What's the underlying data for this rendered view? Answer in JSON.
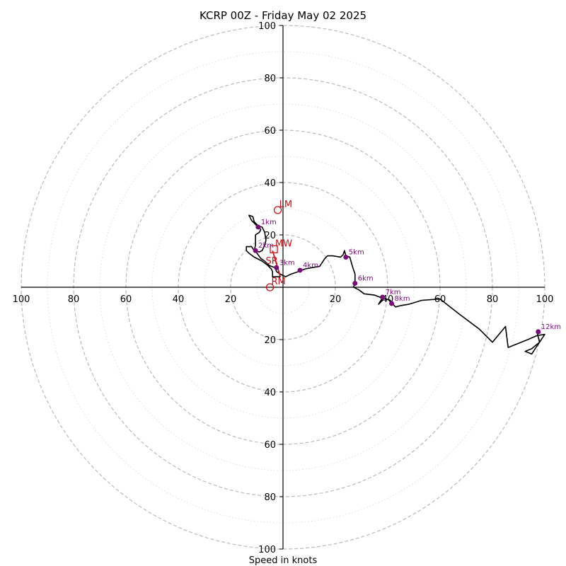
{
  "chart_data": {
    "type": "hodograph",
    "title": "KCRP 00Z - Friday May 02 2025",
    "xlabel": "Speed in knots",
    "units": "knots",
    "range": [
      -100,
      100
    ],
    "ring_major": [
      20,
      40,
      60,
      80,
      100
    ],
    "ring_minor": [
      10,
      30,
      50,
      70,
      90
    ],
    "tick_labels_x": [
      "100",
      "80",
      "60",
      "40",
      "20",
      "20",
      "40",
      "60",
      "80",
      "100"
    ],
    "tick_values_x": [
      -100,
      -80,
      -60,
      -40,
      -20,
      20,
      40,
      60,
      80,
      100
    ],
    "tick_labels_y": [
      "100",
      "80",
      "60",
      "40",
      "20",
      "20",
      "40",
      "60",
      "80",
      "100"
    ],
    "tick_values_y": [
      100,
      80,
      60,
      40,
      20,
      -20,
      -40,
      -60,
      -80,
      -100
    ],
    "grid": true,
    "colors": {
      "trace": "#000000",
      "height_marker": "#7a0a7a",
      "storm_motion": "#c81414",
      "ring_major": "#bbbbbb",
      "ring_minor": "#dddddd"
    },
    "wind_trace": [
      [
        -1,
        4
      ],
      [
        -3,
        4
      ],
      [
        -4,
        4
      ],
      [
        -4,
        6
      ],
      [
        -4.5,
        7
      ],
      [
        -6,
        8.5
      ],
      [
        -8,
        10
      ],
      [
        -11,
        11.5
      ],
      [
        -13,
        13
      ],
      [
        -14,
        14
      ],
      [
        -14,
        15.5
      ],
      [
        -12,
        15.5
      ],
      [
        -11,
        14
      ],
      [
        -10.5,
        16
      ],
      [
        -10.5,
        18
      ],
      [
        -10.5,
        20
      ],
      [
        -9,
        21
      ],
      [
        -8.5,
        22
      ],
      [
        -9.5,
        23.5
      ],
      [
        -11,
        25
      ],
      [
        -11.5,
        27
      ],
      [
        -13,
        27.5
      ],
      [
        -12,
        25.5
      ],
      [
        -10,
        23.5
      ],
      [
        -8,
        23
      ],
      [
        -7,
        21
      ],
      [
        -6.5,
        18
      ],
      [
        -7,
        16
      ],
      [
        -7.5,
        15
      ],
      [
        -8,
        14
      ],
      [
        -9,
        13.5
      ],
      [
        -10.5,
        13.8
      ],
      [
        -8.5,
        11
      ],
      [
        -7,
        10
      ],
      [
        -6,
        9
      ],
      [
        -5,
        8.2
      ],
      [
        -3,
        7.5
      ],
      [
        -2.5,
        6
      ],
      [
        -1,
        5
      ],
      [
        1,
        4
      ],
      [
        3,
        5
      ],
      [
        6,
        6
      ],
      [
        8.5,
        7
      ],
      [
        11,
        7.5
      ],
      [
        14,
        8
      ],
      [
        16,
        11
      ],
      [
        17,
        12
      ],
      [
        19,
        12
      ],
      [
        22,
        11.5
      ],
      [
        23,
        12.5
      ],
      [
        23.5,
        14
      ],
      [
        24,
        12
      ],
      [
        25.5,
        11.5
      ],
      [
        26.5,
        8
      ],
      [
        27.5,
        5
      ],
      [
        27.5,
        2.5
      ],
      [
        27,
        0
      ],
      [
        29,
        -1
      ],
      [
        31,
        -2.5
      ],
      [
        35,
        -3
      ],
      [
        37.5,
        -4
      ],
      [
        38,
        -5
      ],
      [
        36.5,
        -6.5
      ],
      [
        38,
        -4
      ],
      [
        41,
        -5
      ],
      [
        41.5,
        -6
      ],
      [
        43,
        -7.5
      ],
      [
        45,
        -7
      ],
      [
        48,
        -6.5
      ],
      [
        53,
        -5
      ],
      [
        60,
        -4.5
      ],
      [
        67,
        -10
      ],
      [
        75,
        -16
      ],
      [
        80,
        -21
      ],
      [
        85,
        -15
      ],
      [
        86,
        -23
      ],
      [
        93.5,
        -20
      ],
      [
        97,
        -18.5
      ],
      [
        100,
        -18
      ],
      [
        98,
        -21
      ],
      [
        96,
        -24
      ],
      [
        95,
        -25.5
      ],
      [
        92.5,
        -24.5
      ],
      [
        95,
        -23.5
      ],
      [
        98,
        -21
      ],
      [
        97,
        -17
      ]
    ],
    "height_markers": [
      {
        "label": "1km",
        "u": -9.5,
        "v": 23
      },
      {
        "label": "2km",
        "u": -10.5,
        "v": 14
      },
      {
        "label": "3km",
        "u": -2.5,
        "v": 7.5
      },
      {
        "label": "4km",
        "u": 6.5,
        "v": 6.5
      },
      {
        "label": "5km",
        "u": 24,
        "v": 11.5
      },
      {
        "label": "6km",
        "u": 27.5,
        "v": 1.5
      },
      {
        "label": "7km",
        "u": 38,
        "v": -3.8
      },
      {
        "label": "8km",
        "u": 41.5,
        "v": -6.2
      },
      {
        "label": "12km",
        "u": 97.5,
        "v": -17
      }
    ],
    "storm_motion": [
      {
        "label": "LM",
        "u": -2,
        "v": 29.5,
        "marker": "circle"
      },
      {
        "label": "MW",
        "u": -3.5,
        "v": 14.5,
        "marker": "square"
      },
      {
        "label": "SR",
        "u": -5,
        "v": 10,
        "marker": "none"
      },
      {
        "label": "RM",
        "u": -5,
        "v": 0,
        "marker": "circle"
      }
    ],
    "shear_vector": {
      "from": [
        -1,
        4
      ],
      "to": [
        -4,
        14
      ]
    }
  }
}
